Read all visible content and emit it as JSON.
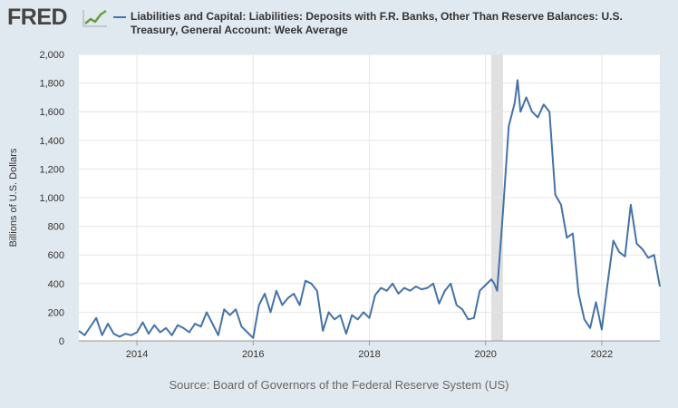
{
  "header": {
    "logo_text": "FRED",
    "logo_graph_icon": "line-chart-icon",
    "legend_label": "Liabilities and Capital: Liabilities: Deposits with F.R. Banks, Other Than Reserve Balances: U.S. Treasury, General Account: Week Average",
    "series_color": "#4572a7"
  },
  "chart_data": {
    "type": "line",
    "title": "",
    "xlabel": "",
    "ylabel": "Billions of U.S. Dollars",
    "ylim": [
      0,
      2000
    ],
    "xlim": [
      2013.0,
      2023.0
    ],
    "y_ticks": [
      "0",
      "200",
      "400",
      "600",
      "800",
      "1,000",
      "1,200",
      "1,400",
      "1,600",
      "1,800",
      "2,000"
    ],
    "x_ticks": [
      "2014",
      "2016",
      "2018",
      "2020",
      "2022"
    ],
    "grid": true,
    "recession_shading": [
      [
        2020.1,
        2020.3
      ]
    ],
    "series": [
      {
        "color": "#4572a7",
        "x": [
          2013.0,
          2013.1,
          2013.2,
          2013.3,
          2013.4,
          2013.5,
          2013.6,
          2013.7,
          2013.8,
          2013.9,
          2014.0,
          2014.1,
          2014.2,
          2014.3,
          2014.4,
          2014.5,
          2014.6,
          2014.7,
          2014.8,
          2014.9,
          2015.0,
          2015.1,
          2015.2,
          2015.3,
          2015.4,
          2015.5,
          2015.6,
          2015.7,
          2015.8,
          2015.9,
          2016.0,
          2016.1,
          2016.2,
          2016.3,
          2016.4,
          2016.5,
          2016.6,
          2016.7,
          2016.8,
          2016.9,
          2017.0,
          2017.1,
          2017.2,
          2017.3,
          2017.4,
          2017.5,
          2017.6,
          2017.7,
          2017.8,
          2017.9,
          2018.0,
          2018.1,
          2018.2,
          2018.3,
          2018.4,
          2018.5,
          2018.6,
          2018.7,
          2018.8,
          2018.9,
          2019.0,
          2019.1,
          2019.2,
          2019.3,
          2019.4,
          2019.5,
          2019.6,
          2019.7,
          2019.8,
          2019.9,
          2020.0,
          2020.1,
          2020.15,
          2020.2,
          2020.3,
          2020.35,
          2020.4,
          2020.5,
          2020.55,
          2020.6,
          2020.7,
          2020.8,
          2020.9,
          2021.0,
          2021.1,
          2021.2,
          2021.3,
          2021.4,
          2021.5,
          2021.6,
          2021.7,
          2021.8,
          2021.9,
          2022.0,
          2022.1,
          2022.2,
          2022.3,
          2022.4,
          2022.5,
          2022.6,
          2022.7,
          2022.8,
          2022.9,
          2023.0
        ],
        "values": [
          70,
          40,
          100,
          160,
          40,
          120,
          50,
          30,
          50,
          40,
          60,
          130,
          50,
          110,
          60,
          90,
          40,
          110,
          90,
          60,
          120,
          100,
          200,
          120,
          40,
          220,
          180,
          220,
          100,
          60,
          20,
          250,
          330,
          200,
          350,
          250,
          300,
          330,
          250,
          420,
          400,
          350,
          70,
          200,
          150,
          180,
          50,
          180,
          150,
          200,
          160,
          320,
          370,
          350,
          400,
          330,
          370,
          350,
          380,
          360,
          370,
          400,
          260,
          350,
          400,
          250,
          220,
          150,
          160,
          350,
          390,
          430,
          400,
          350,
          900,
          1200,
          1500,
          1660,
          1820,
          1600,
          1700,
          1600,
          1560,
          1650,
          1600,
          1020,
          950,
          720,
          750,
          330,
          150,
          90,
          270,
          80,
          400,
          700,
          620,
          590,
          950,
          680,
          640,
          580,
          600,
          380
        ]
      }
    ]
  },
  "footer": {
    "source": "Source: Board of Governors of the Federal Reserve System (US)"
  }
}
